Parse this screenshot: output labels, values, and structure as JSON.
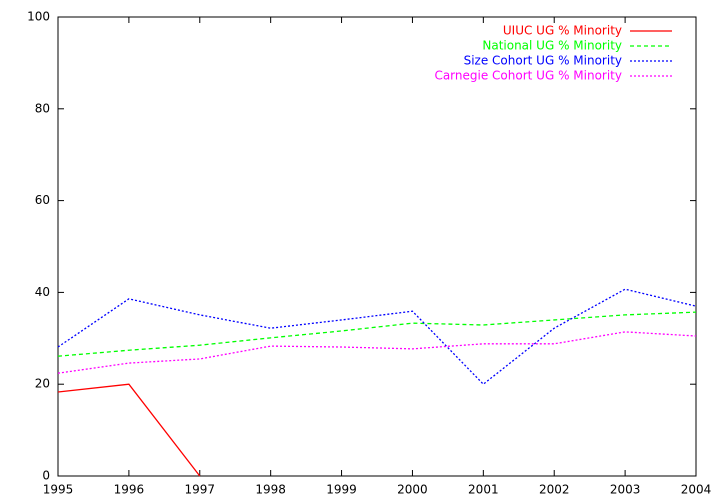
{
  "chart_data": {
    "type": "line",
    "x": [
      1995,
      1996,
      1997,
      1998,
      1999,
      2000,
      2001,
      2002,
      2003,
      2004
    ],
    "series": [
      {
        "name": "UIUC UG % Minority",
        "color": "#ff0000",
        "style": "solid",
        "values": [
          18.3,
          20.0,
          0,
          null,
          null,
          null,
          null,
          null,
          null,
          null
        ]
      },
      {
        "name": "National UG % Minority",
        "color": "#00ff00",
        "style": "dashed",
        "values": [
          26.1,
          27.4,
          28.5,
          30.1,
          31.6,
          33.3,
          32.9,
          34.0,
          35.1,
          35.7
        ]
      },
      {
        "name": "Size Cohort UG % Minority",
        "color": "#0000ff",
        "style": "dotted",
        "values": [
          28.1,
          38.6,
          35.1,
          32.2,
          34.0,
          35.9,
          20.0,
          32.2,
          40.7,
          37.0
        ]
      },
      {
        "name": "Carnegie Cohort UG % Minority",
        "color": "#ff00ff",
        "style": "dotted",
        "values": [
          22.4,
          24.6,
          25.5,
          28.3,
          28.1,
          27.7,
          28.8,
          28.8,
          31.4,
          30.5
        ]
      }
    ],
    "xlim": [
      1995,
      2004
    ],
    "xticks": [
      1995,
      1996,
      1997,
      1998,
      1999,
      2000,
      2001,
      2002,
      2003,
      2004
    ],
    "ylim": [
      0,
      100
    ],
    "yticks": [
      0,
      20,
      40,
      60,
      80,
      100
    ],
    "grid": false,
    "legend": "top-right"
  }
}
